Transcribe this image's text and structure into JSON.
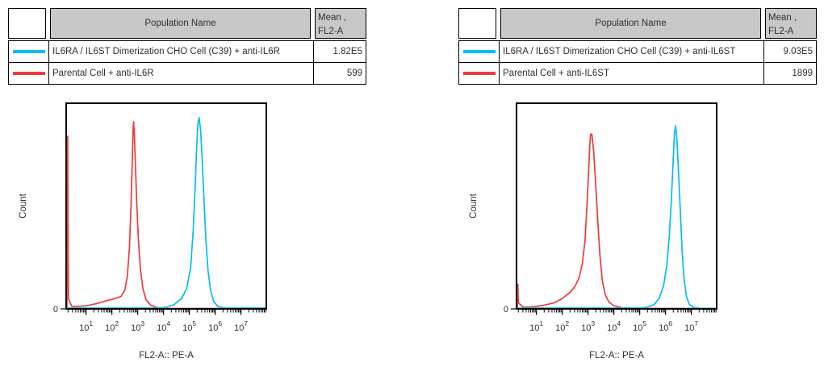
{
  "colors": {
    "cyan_series": "#00BEF2",
    "red_series": "#EF3A3C",
    "header_bg": "#C8C8C8",
    "table_border": "#000000",
    "axis": "#000000",
    "text": "#303030"
  },
  "panels": [
    {
      "table": {
        "header_population": "Population Name",
        "header_mean_line1": "Mean ,",
        "header_mean_line2": "FL2-A",
        "rows": [
          {
            "color": "#00BEF2",
            "population": "IL6RA / IL6ST Dimerization CHO Cell (C39) + anti-IL6R",
            "mean": "1.82E5"
          },
          {
            "color": "#EF3A3C",
            "population": "Parental Cell + anti-IL6R",
            "mean": "599"
          }
        ]
      }
    },
    {
      "table": {
        "header_population": "Population Name",
        "header_mean_line1": "Mean ,",
        "header_mean_line2": "FL2-A",
        "rows": [
          {
            "color": "#00BEF2",
            "population": "IL6RA / IL6ST Dimerization CHO Cell (C39) + anti-IL6ST",
            "mean": "9.03E5"
          },
          {
            "color": "#EF3A3C",
            "population": "Parental Cell + anti-IL6ST",
            "mean": "1899"
          }
        ]
      }
    }
  ],
  "chart_data": [
    {
      "type": "line",
      "title": "",
      "xlabel": "FL2-A:: PE-A",
      "ylabel": "Count",
      "y_zero_label": "0",
      "grid": false,
      "legend_position": "table-above",
      "x_axis": {
        "scale": "log",
        "min_exp": 0.23,
        "max_exp": 7.98,
        "decades": [
          1,
          2,
          3,
          4,
          5,
          6,
          7
        ],
        "tick_label_base": "10"
      },
      "ylim": [
        0,
        1
      ],
      "series": [
        {
          "name": "Parental Cell + anti-IL6R",
          "color": "#EF3A3C",
          "peak_exp": 2.84,
          "peak_height": 0.91,
          "points": [
            [
              0.23,
              0.0
            ],
            [
              0.26,
              0.01
            ],
            [
              0.275,
              0.8
            ],
            [
              0.29,
              0.84
            ],
            [
              0.305,
              0.3
            ],
            [
              0.32,
              0.05
            ],
            [
              0.45,
              0.012
            ],
            [
              0.7,
              0.012
            ],
            [
              1.0,
              0.015
            ],
            [
              1.4,
              0.025
            ],
            [
              1.8,
              0.04
            ],
            [
              2.1,
              0.05
            ],
            [
              2.35,
              0.06
            ],
            [
              2.5,
              0.09
            ],
            [
              2.6,
              0.16
            ],
            [
              2.68,
              0.3
            ],
            [
              2.74,
              0.5
            ],
            [
              2.79,
              0.72
            ],
            [
              2.82,
              0.87
            ],
            [
              2.84,
              0.91
            ],
            [
              2.87,
              0.85
            ],
            [
              2.91,
              0.7
            ],
            [
              2.96,
              0.52
            ],
            [
              3.02,
              0.35
            ],
            [
              3.1,
              0.2
            ],
            [
              3.2,
              0.1
            ],
            [
              3.32,
              0.045
            ],
            [
              3.5,
              0.018
            ],
            [
              3.76,
              0.006
            ],
            [
              4.2,
              0.002
            ],
            [
              7.98,
              0.002
            ]
          ]
        },
        {
          "name": "IL6RA / IL6ST Dimerization CHO Cell (C39) + anti-IL6R",
          "color": "#00BEF2",
          "peak_exp": 5.38,
          "peak_height": 0.93,
          "points": [
            [
              0.23,
              0.004
            ],
            [
              3.8,
              0.004
            ],
            [
              4.1,
              0.008
            ],
            [
              4.4,
              0.02
            ],
            [
              4.7,
              0.05
            ],
            [
              4.9,
              0.1
            ],
            [
              5.05,
              0.2
            ],
            [
              5.15,
              0.38
            ],
            [
              5.22,
              0.58
            ],
            [
              5.28,
              0.78
            ],
            [
              5.33,
              0.9
            ],
            [
              5.38,
              0.93
            ],
            [
              5.44,
              0.86
            ],
            [
              5.5,
              0.72
            ],
            [
              5.57,
              0.52
            ],
            [
              5.64,
              0.34
            ],
            [
              5.72,
              0.19
            ],
            [
              5.82,
              0.09
            ],
            [
              5.95,
              0.035
            ],
            [
              6.1,
              0.012
            ],
            [
              6.35,
              0.004
            ],
            [
              7.98,
              0.004
            ]
          ]
        }
      ]
    },
    {
      "type": "line",
      "title": "",
      "xlabel": "FL2-A:: PE-A",
      "ylabel": "Count",
      "y_zero_label": "0",
      "grid": false,
      "legend_position": "table-above",
      "x_axis": {
        "scale": "log",
        "min_exp": 0.23,
        "max_exp": 7.98,
        "decades": [
          1,
          2,
          3,
          4,
          5,
          6,
          7
        ],
        "tick_label_base": "10"
      },
      "ylim": [
        0,
        1
      ],
      "series": [
        {
          "name": "Parental Cell + anti-IL6ST",
          "color": "#EF3A3C",
          "peak_exp": 3.12,
          "peak_height": 0.85,
          "points": [
            [
              0.23,
              0.0
            ],
            [
              0.26,
              0.01
            ],
            [
              0.28,
              0.12
            ],
            [
              0.3,
              0.03
            ],
            [
              0.5,
              0.008
            ],
            [
              0.9,
              0.01
            ],
            [
              1.3,
              0.018
            ],
            [
              1.7,
              0.03
            ],
            [
              2.0,
              0.05
            ],
            [
              2.3,
              0.08
            ],
            [
              2.5,
              0.11
            ],
            [
              2.65,
              0.15
            ],
            [
              2.78,
              0.22
            ],
            [
              2.88,
              0.33
            ],
            [
              2.95,
              0.48
            ],
            [
              3.01,
              0.64
            ],
            [
              3.06,
              0.78
            ],
            [
              3.1,
              0.85
            ],
            [
              3.15,
              0.85
            ],
            [
              3.22,
              0.76
            ],
            [
              3.3,
              0.6
            ],
            [
              3.38,
              0.42
            ],
            [
              3.46,
              0.26
            ],
            [
              3.55,
              0.14
            ],
            [
              3.66,
              0.07
            ],
            [
              3.8,
              0.035
            ],
            [
              3.98,
              0.016
            ],
            [
              4.3,
              0.006
            ],
            [
              4.75,
              0.002
            ],
            [
              7.98,
              0.002
            ]
          ]
        },
        {
          "name": "IL6RA / IL6ST Dimerization CHO Cell (C39) + anti-IL6ST",
          "color": "#00BEF2",
          "peak_exp": 6.38,
          "peak_height": 0.89,
          "points": [
            [
              0.23,
              0.004
            ],
            [
              5.0,
              0.004
            ],
            [
              5.3,
              0.009
            ],
            [
              5.55,
              0.02
            ],
            [
              5.75,
              0.05
            ],
            [
              5.92,
              0.11
            ],
            [
              6.05,
              0.21
            ],
            [
              6.15,
              0.36
            ],
            [
              6.23,
              0.54
            ],
            [
              6.3,
              0.73
            ],
            [
              6.35,
              0.86
            ],
            [
              6.39,
              0.89
            ],
            [
              6.44,
              0.83
            ],
            [
              6.5,
              0.68
            ],
            [
              6.57,
              0.48
            ],
            [
              6.64,
              0.29
            ],
            [
              6.72,
              0.14
            ],
            [
              6.81,
              0.06
            ],
            [
              6.92,
              0.022
            ],
            [
              7.08,
              0.008
            ],
            [
              7.3,
              0.003
            ],
            [
              7.98,
              0.002
            ]
          ]
        }
      ]
    }
  ]
}
